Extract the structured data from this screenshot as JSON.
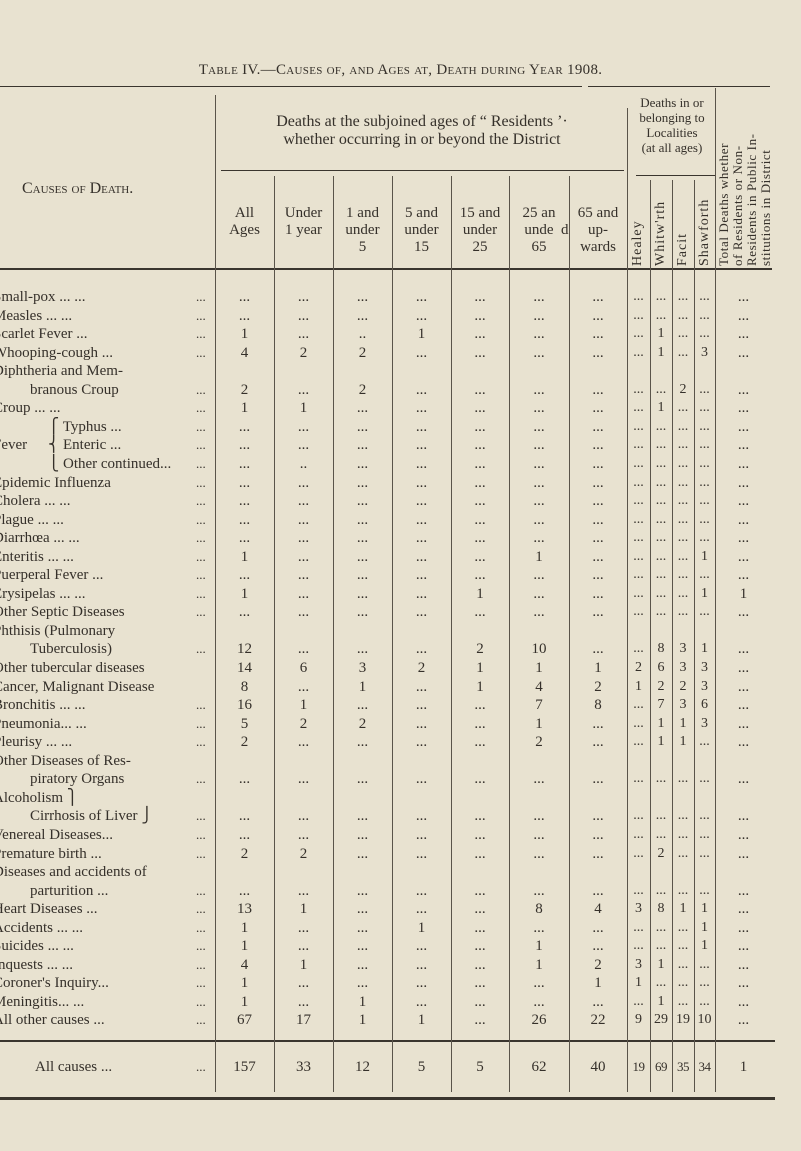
{
  "title": "Table IV.—Causes of, and Ages at, Death during Year 1908.",
  "header": {
    "causes": "Causes of Death.",
    "residents_line1": "Deaths at the subjoined ages of “ Residents ’·",
    "residents_line2": "whether occurring in or beyond the District",
    "localities": [
      "Deaths in or",
      "belonging to",
      "Localities",
      "(at all ages)"
    ],
    "age_columns": [
      [
        "All",
        "Ages"
      ],
      [
        "Under",
        "1 year"
      ],
      [
        "1 and",
        "under",
        "5"
      ],
      [
        "5 and",
        "under",
        "15"
      ],
      [
        "15 and",
        "under",
        "25"
      ],
      [
        "25 an",
        "unde",
        "65"
      ],
      [
        "65 and",
        "up-",
        "wards"
      ]
    ],
    "age_col_stray": "d",
    "locality_columns": [
      "Healey",
      "Whitw'rth",
      "Facit",
      "Shawforth"
    ],
    "total_column": [
      "Total Deaths whether",
      "of Residents or Non-",
      "Residents in Public In-",
      "stitutions in District"
    ]
  },
  "leader": "...",
  "fever_group": "Fever",
  "rows": [
    {
      "label": [
        "Small-pox ...     ..."
      ],
      "values": [
        "...",
        "...",
        "...",
        "...",
        "...",
        "...",
        "...",
        "...",
        "...",
        "...",
        "...",
        "..."
      ]
    },
    {
      "label": [
        "Measles   ...     ..."
      ],
      "values": [
        "...",
        "...",
        "...",
        "...",
        "...",
        "...",
        "...",
        "...",
        "...",
        "...",
        "...",
        "..."
      ]
    },
    {
      "label": [
        "Scarlet Fever     ..."
      ],
      "values": [
        "1",
        "...",
        "..",
        "1",
        "...",
        "...",
        "...",
        "...",
        "1",
        "...",
        "...",
        "..."
      ]
    },
    {
      "label": [
        "Whooping-cough ..."
      ],
      "values": [
        "4",
        "2",
        "2",
        "...",
        "...",
        "...",
        "...",
        "...",
        "1",
        "...",
        "3",
        "..."
      ]
    },
    {
      "label": [
        "Diphtheria and Mem-",
        "branous Croup"
      ],
      "values": [
        "2",
        "...",
        "2",
        "...",
        "...",
        "...",
        "...",
        "...",
        "...",
        "2",
        "...",
        "..."
      ]
    },
    {
      "label": [
        "Croup   ...     ..."
      ],
      "values": [
        "1",
        "1",
        "...",
        "...",
        "...",
        "...",
        "...",
        "...",
        "1",
        "...",
        "...",
        "..."
      ]
    },
    {
      "label": [
        "⎧ Typhus  ..."
      ],
      "fever": true,
      "values": [
        "...",
        "...",
        "...",
        "...",
        "...",
        "...",
        "...",
        "...",
        "...",
        "...",
        "...",
        "..."
      ]
    },
    {
      "label": [
        "⎨ Enteric  ..."
      ],
      "fever": true,
      "values": [
        "...",
        "...",
        "...",
        "...",
        "...",
        "...",
        "...",
        "...",
        "...",
        "...",
        "...",
        "..."
      ]
    },
    {
      "label": [
        "⎩ Other continued..."
      ],
      "fever": true,
      "values": [
        "...",
        "..",
        "...",
        "...",
        "...",
        "...",
        "...",
        "...",
        "...",
        "...",
        "...",
        "..."
      ]
    },
    {
      "label": [
        "Epidemic Influenza"
      ],
      "values": [
        "...",
        "...",
        "...",
        "...",
        "...",
        "...",
        "...",
        "...",
        "...",
        "...",
        "...",
        "..."
      ]
    },
    {
      "label": [
        "Cholera   ...     ..."
      ],
      "values": [
        "...",
        "...",
        "...",
        "...",
        "...",
        "...",
        "...",
        "...",
        "...",
        "...",
        "...",
        "..."
      ]
    },
    {
      "label": [
        "Plague    ...     ..."
      ],
      "values": [
        "...",
        "...",
        "...",
        "...",
        "...",
        "...",
        "...",
        "...",
        "...",
        "...",
        "...",
        "..."
      ]
    },
    {
      "label": [
        "Diarrhœa ...     ..."
      ],
      "values": [
        "...",
        "...",
        "...",
        "...",
        "...",
        "...",
        "...",
        "...",
        "...",
        "...",
        "...",
        "..."
      ]
    },
    {
      "label": [
        "Enteritis  ...    ..."
      ],
      "values": [
        "1",
        "...",
        "...",
        "...",
        "...",
        "1",
        "...",
        "...",
        "...",
        "...",
        "1",
        "..."
      ]
    },
    {
      "label": [
        "Puerperal Fever ..."
      ],
      "values": [
        "...",
        "...",
        "...",
        "...",
        "...",
        "...",
        "...",
        "...",
        "...",
        "...",
        "...",
        "..."
      ]
    },
    {
      "label": [
        "Erysipelas ...    ..."
      ],
      "values": [
        "1",
        "...",
        "...",
        "...",
        "1",
        "...",
        "...",
        "...",
        "...",
        "...",
        "1",
        "1"
      ]
    },
    {
      "label": [
        "Other Septic Diseases"
      ],
      "values": [
        "...",
        "...",
        "...",
        "...",
        "...",
        "...",
        "...",
        "...",
        "...",
        "...",
        "...",
        "..."
      ]
    },
    {
      "label": [
        "Phthisis (Pulmonary",
        "Tuberculosis)"
      ],
      "values": [
        "12",
        "...",
        "...",
        "...",
        "2",
        "10",
        "...",
        "...",
        "8",
        "3",
        "1",
        "..."
      ]
    },
    {
      "label": [
        "Other tubercular diseases"
      ],
      "noleader": true,
      "values": [
        "14",
        "6",
        "3",
        "2",
        "1",
        "1",
        "1",
        "2",
        "6",
        "3",
        "3",
        "..."
      ]
    },
    {
      "label": [
        "Cancer, Malignant Disease"
      ],
      "noleader": true,
      "values": [
        "8",
        "...",
        "1",
        "...",
        "1",
        "4",
        "2",
        "1",
        "2",
        "2",
        "3",
        "..."
      ]
    },
    {
      "label": [
        "Bronchitis ...    ..."
      ],
      "values": [
        "16",
        "1",
        "...",
        "...",
        "...",
        "7",
        "8",
        "...",
        "7",
        "3",
        "6",
        "..."
      ]
    },
    {
      "label": [
        "Pneumonia...      ..."
      ],
      "values": [
        "5",
        "2",
        "2",
        "...",
        "...",
        "1",
        "...",
        "...",
        "1",
        "1",
        "3",
        "..."
      ]
    },
    {
      "label": [
        "Pleurisy  ...     ..."
      ],
      "values": [
        "2",
        "...",
        "...",
        "...",
        "...",
        "2",
        "...",
        "...",
        "1",
        "1",
        "...",
        "..."
      ]
    },
    {
      "label": [
        "Other Diseases of Res-",
        "piratory Organs"
      ],
      "values": [
        "...",
        "...",
        "...",
        "...",
        "...",
        "...",
        "...",
        "...",
        "...",
        "...",
        "...",
        "..."
      ]
    },
    {
      "label": [
        "Alcoholism        ⎫",
        "Cirrhosis of Liver ⎭"
      ],
      "values": [
        "...",
        "...",
        "...",
        "...",
        "...",
        "...",
        "...",
        "...",
        "...",
        "...",
        "...",
        "..."
      ]
    },
    {
      "label": [
        "Venereal Diseases..."
      ],
      "values": [
        "...",
        "...",
        "...",
        "...",
        "...",
        "...",
        "...",
        "...",
        "...",
        "...",
        "...",
        "..."
      ]
    },
    {
      "label": [
        "Premature birth ..."
      ],
      "values": [
        "2",
        "2",
        "...",
        "...",
        "...",
        "...",
        "...",
        "...",
        "2",
        "...",
        "...",
        "..."
      ]
    },
    {
      "label": [
        "Diseases and accidents of",
        "parturition  ..."
      ],
      "values": [
        "...",
        "...",
        "...",
        "...",
        "...",
        "...",
        "...",
        "...",
        "...",
        "...",
        "...",
        "..."
      ]
    },
    {
      "label": [
        "Heart Diseases    ..."
      ],
      "values": [
        "13",
        "1",
        "...",
        "...",
        "...",
        "8",
        "4",
        "3",
        "8",
        "1",
        "1",
        "..."
      ]
    },
    {
      "label": [
        "Accidents ...     ..."
      ],
      "values": [
        "1",
        "...",
        "...",
        "1",
        "...",
        "...",
        "...",
        "...",
        "...",
        "...",
        "1",
        "..."
      ]
    },
    {
      "label": [
        "Suicides  ...     ..."
      ],
      "values": [
        "1",
        "...",
        "...",
        "...",
        "...",
        "1",
        "...",
        "...",
        "...",
        "...",
        "1",
        "..."
      ]
    },
    {
      "label": [
        "Inquests  ...     ..."
      ],
      "values": [
        "4",
        "1",
        "...",
        "...",
        "...",
        "1",
        "2",
        "3",
        "1",
        "...",
        "...",
        "..."
      ]
    },
    {
      "label": [
        "Coroner's Inquiry..."
      ],
      "values": [
        "1",
        "...",
        "...",
        "...",
        "...",
        "...",
        "1",
        "1",
        "...",
        "...",
        "...",
        "..."
      ]
    },
    {
      "label": [
        "Meningitis...     ..."
      ],
      "values": [
        "1",
        "...",
        "1",
        "...",
        "...",
        "...",
        "...",
        "...",
        "1",
        "...",
        "...",
        "..."
      ]
    },
    {
      "label": [
        "All other causes ..."
      ],
      "values": [
        "67",
        "17",
        "1",
        "1",
        "...",
        "26",
        "22",
        "9",
        "29",
        "19",
        "10",
        "..."
      ]
    }
  ],
  "totals": {
    "label": "All causes    ...",
    "values": [
      "157",
      "33",
      "12",
      "5",
      "5",
      "62",
      "40",
      "19",
      "69",
      "35",
      "34",
      "1"
    ]
  }
}
